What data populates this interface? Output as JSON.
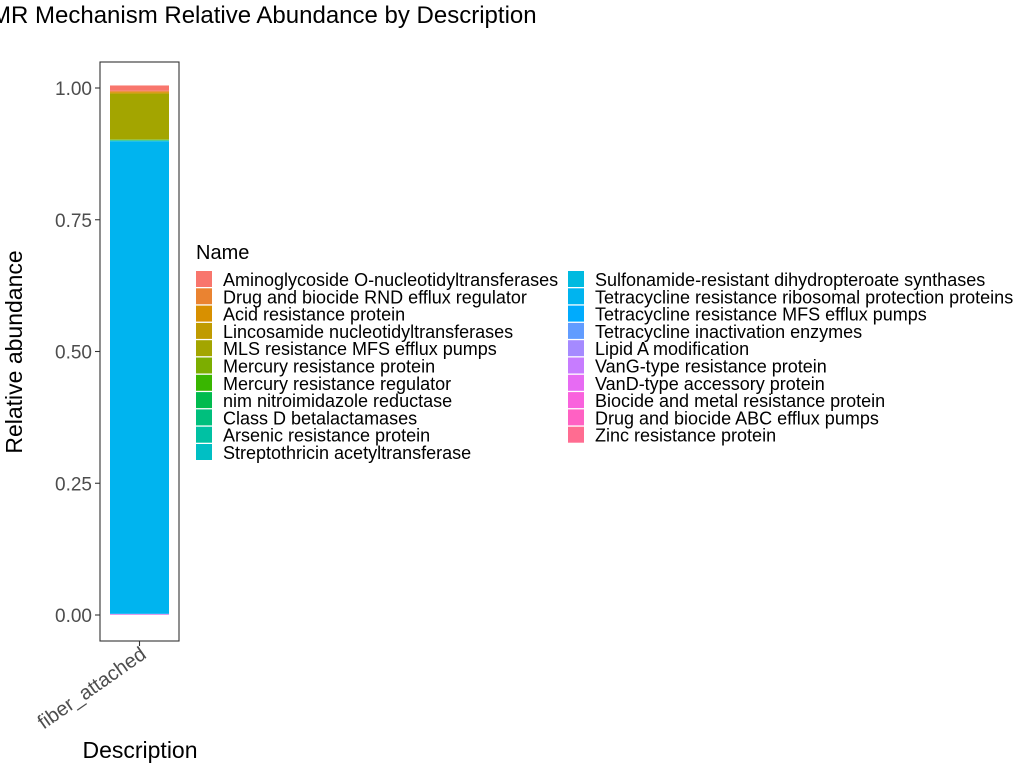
{
  "chart_data": {
    "type": "bar",
    "stacked": true,
    "title": "AMR Mechanism Relative Abundance by Description",
    "xlabel": "Description",
    "ylabel": "Relative abundance",
    "categories": [
      "fiber_attached"
    ],
    "ylim": [
      0,
      1
    ],
    "yticks": [
      "0.00",
      "0.25",
      "0.50",
      "0.75",
      "1.00"
    ],
    "ytick_values": [
      0,
      0.25,
      0.5,
      0.75,
      1.0
    ],
    "grid": false,
    "legend_title": "Name",
    "legend_position": "right",
    "series": [
      {
        "name": "Aminoglycoside O-nucleotidyltransferases",
        "color": "#F8766D",
        "values": [
          0.01
        ]
      },
      {
        "name": "Drug and biocide RND efflux regulator",
        "color": "#EA8331",
        "values": [
          0.002
        ]
      },
      {
        "name": "Acid resistance protein",
        "color": "#D89000",
        "values": [
          0.002
        ]
      },
      {
        "name": "Lincosamide nucleotidyltransferases",
        "color": "#C09B00",
        "values": [
          0.002
        ]
      },
      {
        "name": "MLS resistance MFS efflux pumps",
        "color": "#A3A500",
        "values": [
          0.086
        ]
      },
      {
        "name": "Mercury resistance protein",
        "color": "#7CAE00",
        "values": [
          0.001
        ]
      },
      {
        "name": "Mercury resistance regulator",
        "color": "#39B600",
        "values": [
          0.0005
        ]
      },
      {
        "name": "nim nitroimidazole reductase",
        "color": "#00BB4E",
        "values": [
          0.0005
        ]
      },
      {
        "name": "Class D betalactamases",
        "color": "#00BF7D",
        "values": [
          0.0005
        ]
      },
      {
        "name": "Arsenic resistance protein",
        "color": "#00C1A3",
        "values": [
          0.0005
        ]
      },
      {
        "name": "Streptothricin acetyltransferase",
        "color": "#00BFC4",
        "values": [
          0.0005
        ]
      },
      {
        "name": "Sulfonamide-resistant dihydropteroate synthases",
        "color": "#00BAE0",
        "values": [
          0.0005
        ]
      },
      {
        "name": "Tetracycline resistance ribosomal protection proteins",
        "color": "#00B4EF",
        "values": [
          0.896
        ]
      },
      {
        "name": "Tetracycline resistance MFS efflux pumps",
        "color": "#00ABFD",
        "values": [
          0.0005
        ]
      },
      {
        "name": "Tetracycline inactivation enzymes",
        "color": "#619CFF",
        "values": [
          0.0005
        ]
      },
      {
        "name": "Lipid A modification",
        "color": "#A58AFF",
        "values": [
          0.0003
        ]
      },
      {
        "name": "VanG-type resistance protein",
        "color": "#C77CFF",
        "values": [
          0.0003
        ]
      },
      {
        "name": "VanD-type accessory protein",
        "color": "#E76BF3",
        "values": [
          0.0003
        ]
      },
      {
        "name": "Biocide and metal resistance protein",
        "color": "#F962DD",
        "values": [
          0.0003
        ]
      },
      {
        "name": "Drug and biocide ABC efflux pumps",
        "color": "#FF61C3",
        "values": [
          0.0003
        ]
      },
      {
        "name": "Zinc resistance protein",
        "color": "#FF6C91",
        "values": [
          0.0003
        ]
      }
    ]
  }
}
